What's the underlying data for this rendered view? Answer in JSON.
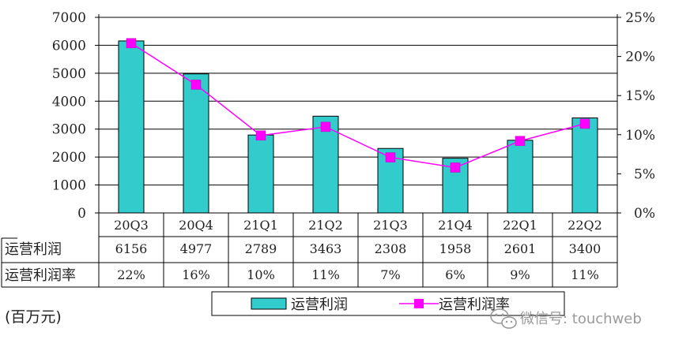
{
  "chart_data": {
    "type": "bar",
    "categories": [
      "20Q3",
      "20Q4",
      "21Q1",
      "21Q2",
      "21Q3",
      "21Q4",
      "22Q1",
      "22Q2"
    ],
    "series": [
      {
        "name": "运营利润",
        "type": "bar",
        "axis": "left",
        "values": [
          6156,
          4977,
          2789,
          3463,
          2308,
          1958,
          2601,
          3400
        ],
        "color": "#33CCCC"
      },
      {
        "name": "运营利润率",
        "type": "line",
        "axis": "right",
        "values": [
          21.7,
          16.4,
          9.9,
          11.0,
          7.1,
          5.8,
          9.2,
          11.4
        ],
        "color": "#FF00FF"
      }
    ],
    "ylim_left": [
      0,
      7000
    ],
    "yticks_left": [
      "0",
      "1000",
      "2000",
      "3000",
      "4000",
      "5000",
      "6000",
      "7000"
    ],
    "ylim_right": [
      0,
      25
    ],
    "yticks_right": [
      "0%",
      "5%",
      "10%",
      "15%",
      "20%",
      "25%"
    ],
    "grid": true,
    "legend": "bottom",
    "unit_note": "(百万元)",
    "table": {
      "rows": [
        {
          "label": "运营利润",
          "values": [
            "6156",
            "4977",
            "2789",
            "3463",
            "2308",
            "1958",
            "2601",
            "3400"
          ]
        },
        {
          "label": "运营利润率",
          "values": [
            "22%",
            "16%",
            "10%",
            "11%",
            "7%",
            "6%",
            "9%",
            "11%"
          ]
        }
      ]
    }
  },
  "watermark": {
    "text": "微信号: touchweb",
    "icon": "wechat-icon"
  }
}
